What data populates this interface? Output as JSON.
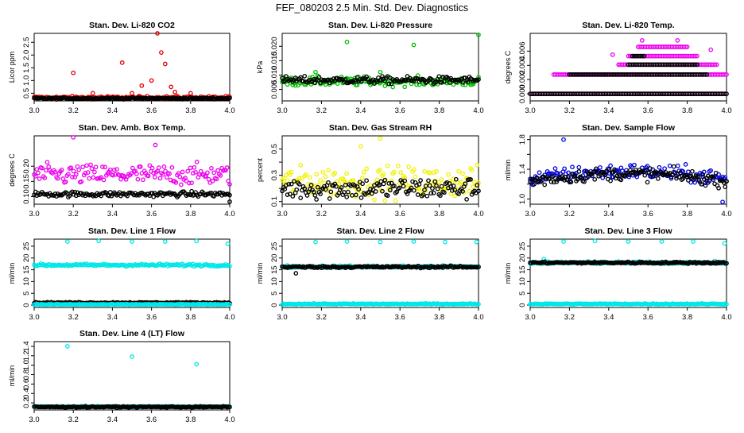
{
  "figure_title": "FEF_080203  2.5 Min. Std. Dev. Diagnostics",
  "colors": {
    "black": "#000000",
    "red": "#e00000",
    "green": "#00c000",
    "magenta": "#ee00ee",
    "yellow": "#f2f200",
    "blue": "#0000dd",
    "cyan": "#00e8e8"
  },
  "chart_data": [
    {
      "type": "scatter",
      "title": "Stan. Dev. Li-820 CO2",
      "xlabel": "",
      "ylabel": "Licor ppm",
      "xlim": [
        3.0,
        4.0
      ],
      "ylim": [
        0.2,
        2.85
      ],
      "xticks": [
        "3.0",
        "3.2",
        "3.4",
        "3.6",
        "3.8",
        "4.0"
      ],
      "yticks": [
        0.5,
        1.0,
        1.5,
        2.0,
        2.5
      ],
      "ytick_labels": [
        "0.5",
        "1.0",
        "1.5",
        "2.0",
        "2.5"
      ],
      "series": [
        {
          "name": "red",
          "color": "#e00000",
          "base": 0.33,
          "noise": 0.05,
          "outliers": [
            [
              3.2,
              1.3
            ],
            [
              3.45,
              1.7
            ],
            [
              3.55,
              0.8
            ],
            [
              3.6,
              1.0
            ],
            [
              3.63,
              2.85
            ],
            [
              3.65,
              2.1
            ],
            [
              3.67,
              1.65
            ],
            [
              3.7,
              0.75
            ],
            [
              3.72,
              0.55
            ],
            [
              3.5,
              0.5
            ],
            [
              3.3,
              0.5
            ],
            [
              3.8,
              0.5
            ]
          ]
        },
        {
          "name": "black",
          "color": "#000000",
          "base": 0.3,
          "noise": 0.03,
          "outliers": []
        }
      ]
    },
    {
      "type": "scatter",
      "title": "Stan. Dev. Li-820 Pressure",
      "xlabel": "",
      "ylabel": "kPa",
      "xlim": [
        3.0,
        4.0
      ],
      "ylim": [
        0.001,
        0.0245
      ],
      "xticks": [
        "3.0",
        "3.2",
        "3.4",
        "3.6",
        "3.8",
        "4.0"
      ],
      "yticks": [
        0.005,
        0.01,
        0.015,
        0.02
      ],
      "ytick_labels": [
        "0.005",
        "0.010",
        "0.015",
        "0.020"
      ],
      "series": [
        {
          "name": "green",
          "color": "#00c000",
          "base": 0.0078,
          "noise": 0.0015,
          "outliers": [
            [
              3.33,
              0.0215
            ],
            [
              3.67,
              0.0205
            ],
            [
              4.0,
              0.024
            ],
            [
              3.17,
              0.011
            ],
            [
              3.5,
              0.011
            ]
          ]
        },
        {
          "name": "black",
          "color": "#000000",
          "base": 0.0082,
          "noise": 0.0012,
          "outliers": []
        }
      ]
    },
    {
      "type": "scatter",
      "title": "Stan. Dev. Li-820 Temp.",
      "xlabel": "",
      "ylabel": "degrees C",
      "xlim": [
        3.0,
        4.0
      ],
      "ylim": [
        -0.001,
        0.0085
      ],
      "xticks": [
        "3.0",
        "3.2",
        "3.4",
        "3.6",
        "3.8",
        "4.0"
      ],
      "yticks": [
        0.0,
        0.002,
        0.004,
        0.006
      ],
      "ytick_labels": [
        "0.000",
        "0.002",
        "0.004",
        "0.006"
      ],
      "series": [
        {
          "name": "magenta",
          "color": "#ee00ee",
          "base": 0.0,
          "noise": 0.0,
          "mode": "bands",
          "bands": [
            [
              3.0,
              4.0,
              0.0
            ],
            [
              3.12,
              4.0,
              0.0027
            ],
            [
              3.45,
              3.95,
              0.0041
            ],
            [
              3.5,
              3.85,
              0.0053
            ],
            [
              3.55,
              3.8,
              0.0066
            ]
          ],
          "outliers": [
            [
              3.57,
              0.0075
            ],
            [
              3.75,
              0.0075
            ],
            [
              3.92,
              0.0062
            ],
            [
              3.42,
              0.0055
            ]
          ]
        },
        {
          "name": "black",
          "color": "#000000",
          "base": 0.0,
          "noise": 0.0,
          "mode": "bands",
          "bands": [
            [
              3.0,
              4.0,
              0.0
            ],
            [
              3.2,
              3.9,
              0.0027
            ],
            [
              3.5,
              3.85,
              0.0041
            ],
            [
              3.52,
              3.58,
              0.0053
            ]
          ],
          "outliers": []
        }
      ]
    },
    {
      "type": "scatter",
      "title": "Stan. Dev. Amb. Box Temp.",
      "xlabel": "",
      "ylabel": "degrees C",
      "xlim": [
        3.0,
        4.0
      ],
      "ylim": [
        0.075,
        0.3
      ],
      "xticks": [
        "3.0",
        "3.2",
        "3.4",
        "3.6",
        "3.8",
        "4.0"
      ],
      "yticks": [
        0.1,
        0.15,
        0.2
      ],
      "ytick_labels": [
        "0.10",
        "0.15",
        "0.20"
      ],
      "series": [
        {
          "name": "magenta",
          "color": "#ee00ee",
          "base": 0.172,
          "noise": 0.032,
          "outliers": [
            [
              3.2,
              0.295
            ],
            [
              3.62,
              0.27
            ]
          ]
        },
        {
          "name": "black",
          "color": "#000000",
          "base": 0.108,
          "noise": 0.008,
          "outliers": [
            [
              4.0,
              0.083
            ]
          ]
        }
      ]
    },
    {
      "type": "scatter",
      "title": "Stan. Dev. Gas Stream RH",
      "xlabel": "",
      "ylabel": "percent",
      "xlim": [
        3.0,
        4.0
      ],
      "ylim": [
        0.08,
        0.6
      ],
      "xticks": [
        "3.0",
        "3.2",
        "3.4",
        "3.6",
        "3.8",
        "4.0"
      ],
      "yticks": [
        0.1,
        0.2,
        0.3,
        0.4,
        0.5
      ],
      "ytick_labels": [
        "0.1",
        "0.3",
        "0.5"
      ],
      "ytick_label_values": [
        0.1,
        0.3,
        0.5
      ],
      "series": [
        {
          "name": "yellow",
          "color": "#f2f200",
          "base": 0.25,
          "noise": 0.11,
          "outliers": [
            [
              3.5,
              0.58
            ],
            [
              3.4,
              0.52
            ]
          ]
        },
        {
          "name": "black",
          "color": "#000000",
          "base": 0.2,
          "noise": 0.08,
          "outliers": []
        }
      ]
    },
    {
      "type": "scatter",
      "title": "Stan. Dev. Sample Flow",
      "xlabel": "",
      "ylabel": "ml/min",
      "xlim": [
        3.0,
        4.0
      ],
      "ylim": [
        0.93,
        1.85
      ],
      "xticks": [
        "3.0",
        "3.2",
        "3.4",
        "3.6",
        "3.8",
        "4.0"
      ],
      "yticks": [
        1.0,
        1.2,
        1.4,
        1.6,
        1.8
      ],
      "ytick_labels": [
        "1.0",
        "1.4",
        "1.8"
      ],
      "ytick_label_values": [
        1.0,
        1.4,
        1.8
      ],
      "series": [
        {
          "name": "blue",
          "color": "#0000dd",
          "base": 1.27,
          "noise": 0.1,
          "shape": "arch",
          "outliers": [
            [
              3.17,
              1.8
            ],
            [
              3.98,
              0.96
            ]
          ]
        },
        {
          "name": "black",
          "color": "#000000",
          "base": 1.24,
          "noise": 0.08,
          "shape": "arch",
          "outliers": []
        }
      ]
    },
    {
      "type": "scatter",
      "title": "Stan. Dev. Line 1 Flow",
      "xlabel": "",
      "ylabel": "ml/min",
      "xlim": [
        3.0,
        4.0
      ],
      "ylim": [
        -1,
        28
      ],
      "xticks": [
        "3.0",
        "3.2",
        "3.4",
        "3.6",
        "3.8",
        "4.0"
      ],
      "yticks": [
        0,
        5,
        10,
        15,
        20,
        25
      ],
      "ytick_labels": [
        "0",
        "5",
        "10",
        "15",
        "20",
        "25"
      ],
      "series": [
        {
          "name": "cyan",
          "color": "#00e8e8",
          "base": 17.0,
          "noise": 0.5,
          "outliers": [
            [
              3.17,
              27
            ],
            [
              3.33,
              27.2
            ],
            [
              3.5,
              27
            ],
            [
              3.67,
              27
            ],
            [
              3.83,
              27.2
            ],
            [
              3.99,
              26
            ]
          ]
        },
        {
          "name": "black",
          "color": "#000000",
          "base": 1.0,
          "noise": 0.25,
          "outliers": []
        },
        {
          "name": "cyan-low",
          "color": "#00e8e8",
          "base": 0.3,
          "noise": 0.15,
          "outliers": []
        }
      ]
    },
    {
      "type": "scatter",
      "title": "Stan. Dev. Line 2 Flow",
      "xlabel": "",
      "ylabel": "ml/min",
      "xlim": [
        3.0,
        4.0
      ],
      "ylim": [
        -1,
        28
      ],
      "xticks": [
        "3.0",
        "3.2",
        "3.4",
        "3.6",
        "3.8",
        "4.0"
      ],
      "yticks": [
        0,
        5,
        10,
        15,
        20,
        25
      ],
      "ytick_labels": [
        "0",
        "5",
        "10",
        "15",
        "20",
        "25"
      ],
      "series": [
        {
          "name": "cyan",
          "color": "#00e8e8",
          "base": 0.5,
          "noise": 0.2,
          "outliers": [
            [
              3.17,
              26.8
            ],
            [
              3.33,
              27
            ],
            [
              3.5,
              26.8
            ],
            [
              3.67,
              27
            ],
            [
              3.83,
              26.8
            ],
            [
              3.99,
              26.8
            ]
          ]
        },
        {
          "name": "cyan-mid",
          "color": "#00e8e8",
          "base": 16.3,
          "noise": 0.5,
          "outliers": []
        },
        {
          "name": "black",
          "color": "#000000",
          "base": 16.2,
          "noise": 0.4,
          "outliers": [
            [
              3.07,
              13.5
            ]
          ]
        }
      ]
    },
    {
      "type": "scatter",
      "title": "Stan. Dev. Line 3 Flow",
      "xlabel": "",
      "ylabel": "ml/min",
      "xlim": [
        3.0,
        4.0
      ],
      "ylim": [
        -1,
        28
      ],
      "xticks": [
        "3.0",
        "3.2",
        "3.4",
        "3.6",
        "3.8",
        "4.0"
      ],
      "yticks": [
        0,
        5,
        10,
        15,
        20,
        25
      ],
      "ytick_labels": [
        "0",
        "5",
        "10",
        "15",
        "20",
        "25"
      ],
      "series": [
        {
          "name": "cyan",
          "color": "#00e8e8",
          "base": 0.5,
          "noise": 0.2,
          "outliers": [
            [
              3.17,
              27
            ],
            [
              3.33,
              27.2
            ],
            [
              3.5,
              27
            ],
            [
              3.67,
              27
            ],
            [
              3.83,
              27
            ],
            [
              3.99,
              26.2
            ]
          ]
        },
        {
          "name": "cyan-mid",
          "color": "#00e8e8",
          "base": 18.0,
          "noise": 0.5,
          "outliers": [
            [
              3.07,
              19.5
            ]
          ]
        },
        {
          "name": "black",
          "color": "#000000",
          "base": 18.0,
          "noise": 0.35,
          "outliers": []
        }
      ]
    },
    {
      "type": "scatter",
      "title": "Stan. Dev. Line 4 (LT) Flow",
      "xlabel": "",
      "ylabel": "ml/min",
      "xlim": [
        3.0,
        4.0
      ],
      "ylim": [
        0.05,
        1.5
      ],
      "xticks": [
        "3.0",
        "3.2",
        "3.4",
        "3.6",
        "3.8",
        "4.0"
      ],
      "yticks": [
        0.2,
        0.4,
        0.6,
        0.8,
        1.0,
        1.2,
        1.4
      ],
      "ytick_labels": [
        "0.2",
        "0.4",
        "0.6",
        "0.8",
        "1.0",
        "1.2",
        "1.4"
      ],
      "series": [
        {
          "name": "cyan",
          "color": "#00e8e8",
          "base": 0.12,
          "noise": 0.012,
          "outliers": [
            [
              3.17,
              1.4
            ],
            [
              3.5,
              1.18
            ],
            [
              3.83,
              1.02
            ]
          ]
        },
        {
          "name": "black",
          "color": "#000000",
          "base": 0.115,
          "noise": 0.01,
          "outliers": []
        }
      ]
    }
  ]
}
